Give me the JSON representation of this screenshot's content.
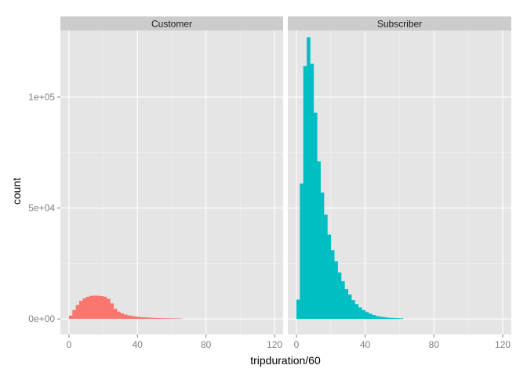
{
  "chart_data": {
    "type": "bar",
    "subtype": "histogram-facets",
    "xlabel": "tripduration/60",
    "ylabel": "count",
    "xlim": [
      -5,
      125
    ],
    "ylim": [
      -7000,
      130000
    ],
    "x_ticks": [
      0,
      40,
      80,
      120
    ],
    "x_tick_labels": [
      "0",
      "40",
      "80",
      "120"
    ],
    "y_ticks": [
      0,
      50000,
      100000
    ],
    "y_tick_labels": [
      "0e+00",
      "5e+04",
      "1e+05"
    ],
    "bin_width": 2,
    "grid": true,
    "facets": [
      {
        "name": "Customer",
        "color": "#F8766D",
        "bins": [
          {
            "x0": 0,
            "count": 1500
          },
          {
            "x0": 2,
            "count": 4000
          },
          {
            "x0": 4,
            "count": 6300
          },
          {
            "x0": 6,
            "count": 8200
          },
          {
            "x0": 8,
            "count": 9300
          },
          {
            "x0": 10,
            "count": 10000
          },
          {
            "x0": 12,
            "count": 10400
          },
          {
            "x0": 14,
            "count": 10500
          },
          {
            "x0": 16,
            "count": 10500
          },
          {
            "x0": 18,
            "count": 10300
          },
          {
            "x0": 20,
            "count": 10000
          },
          {
            "x0": 22,
            "count": 9100
          },
          {
            "x0": 24,
            "count": 7000
          },
          {
            "x0": 26,
            "count": 4600
          },
          {
            "x0": 28,
            "count": 3300
          },
          {
            "x0": 30,
            "count": 2500
          },
          {
            "x0": 32,
            "count": 2000
          },
          {
            "x0": 34,
            "count": 1600
          },
          {
            "x0": 36,
            "count": 1300
          },
          {
            "x0": 38,
            "count": 1100
          },
          {
            "x0": 40,
            "count": 900
          },
          {
            "x0": 42,
            "count": 800
          },
          {
            "x0": 44,
            "count": 700
          },
          {
            "x0": 46,
            "count": 600
          },
          {
            "x0": 48,
            "count": 500
          },
          {
            "x0": 50,
            "count": 450
          },
          {
            "x0": 52,
            "count": 400
          },
          {
            "x0": 54,
            "count": 350
          },
          {
            "x0": 56,
            "count": 300
          },
          {
            "x0": 58,
            "count": 300
          },
          {
            "x0": 60,
            "count": 250
          },
          {
            "x0": 62,
            "count": 250
          },
          {
            "x0": 64,
            "count": 200
          }
        ]
      },
      {
        "name": "Subscriber",
        "color": "#00BFC4",
        "bins": [
          {
            "x0": 0,
            "count": 8700
          },
          {
            "x0": 2,
            "count": 61000
          },
          {
            "x0": 4,
            "count": 114000
          },
          {
            "x0": 6,
            "count": 127000
          },
          {
            "x0": 8,
            "count": 115000
          },
          {
            "x0": 10,
            "count": 93000
          },
          {
            "x0": 12,
            "count": 71000
          },
          {
            "x0": 14,
            "count": 57000
          },
          {
            "x0": 16,
            "count": 47000
          },
          {
            "x0": 18,
            "count": 38000
          },
          {
            "x0": 20,
            "count": 31000
          },
          {
            "x0": 22,
            "count": 26000
          },
          {
            "x0": 24,
            "count": 21000
          },
          {
            "x0": 26,
            "count": 17000
          },
          {
            "x0": 28,
            "count": 13500
          },
          {
            "x0": 30,
            "count": 11000
          },
          {
            "x0": 32,
            "count": 8500
          },
          {
            "x0": 34,
            "count": 6700
          },
          {
            "x0": 36,
            "count": 5200
          },
          {
            "x0": 38,
            "count": 4000
          },
          {
            "x0": 40,
            "count": 3100
          },
          {
            "x0": 42,
            "count": 2400
          },
          {
            "x0": 44,
            "count": 1800
          },
          {
            "x0": 46,
            "count": 1300
          },
          {
            "x0": 48,
            "count": 1000
          },
          {
            "x0": 50,
            "count": 800
          },
          {
            "x0": 52,
            "count": 600
          },
          {
            "x0": 54,
            "count": 500
          },
          {
            "x0": 56,
            "count": 400
          },
          {
            "x0": 58,
            "count": 350
          },
          {
            "x0": 60,
            "count": 300
          }
        ]
      }
    ],
    "colors": {
      "panel_background": "#E5E5E5",
      "strip_background": "#CCCCCC",
      "grid_major": "#FFFFFF",
      "grid_minor": "#F2F2F2",
      "tick_text": "#7F7F7F"
    }
  }
}
